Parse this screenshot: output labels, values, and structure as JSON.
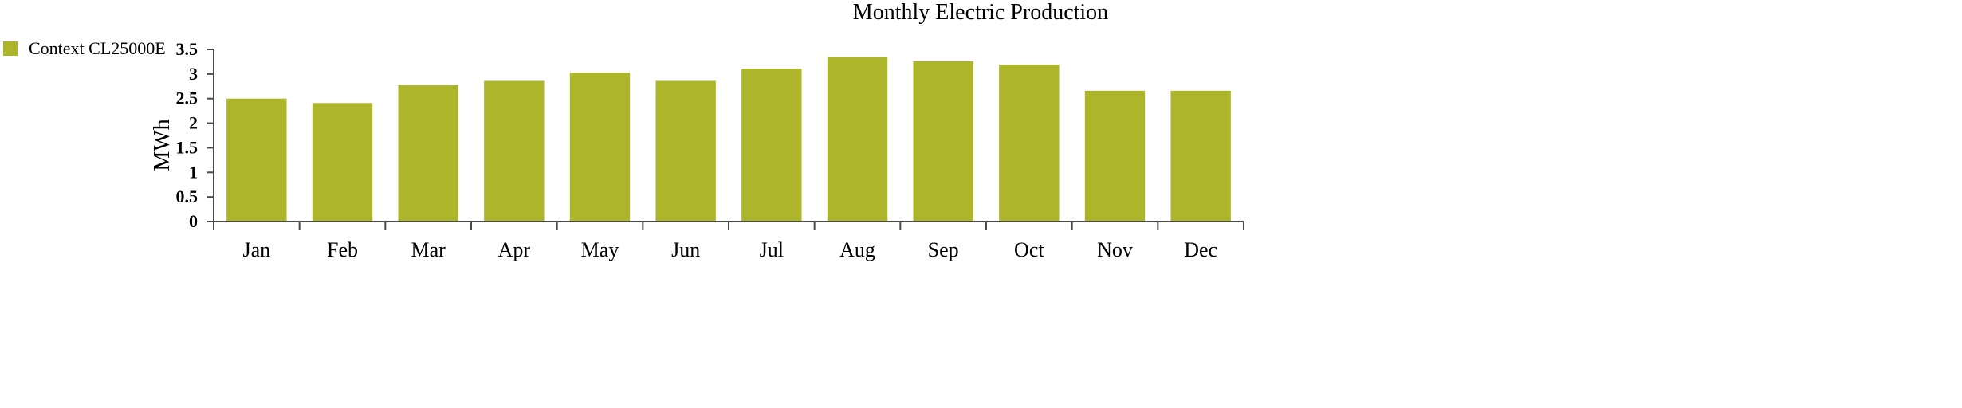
{
  "chart_data": {
    "type": "bar",
    "title": "Monthly Electric Production",
    "xlabel": "",
    "ylabel": "MWh",
    "categories": [
      "Jan",
      "Feb",
      "Mar",
      "Apr",
      "May",
      "Jun",
      "Jul",
      "Aug",
      "Sep",
      "Oct",
      "Nov",
      "Dec"
    ],
    "series": [
      {
        "name": "Context CL25000E",
        "color": "#adb52b",
        "values": [
          2.5,
          2.41,
          2.77,
          2.86,
          3.03,
          2.86,
          3.11,
          3.34,
          3.26,
          3.19,
          2.66,
          2.66
        ]
      }
    ],
    "ylim": [
      0,
      3.5
    ],
    "yticks": [
      "0",
      "0.5",
      "1",
      "1.5",
      "2",
      "2.5",
      "3",
      "3.5"
    ],
    "ytick_values": [
      0,
      0.5,
      1,
      1.5,
      2,
      2.5,
      3,
      3.5
    ],
    "grid": false,
    "legend_position": "top-left"
  }
}
